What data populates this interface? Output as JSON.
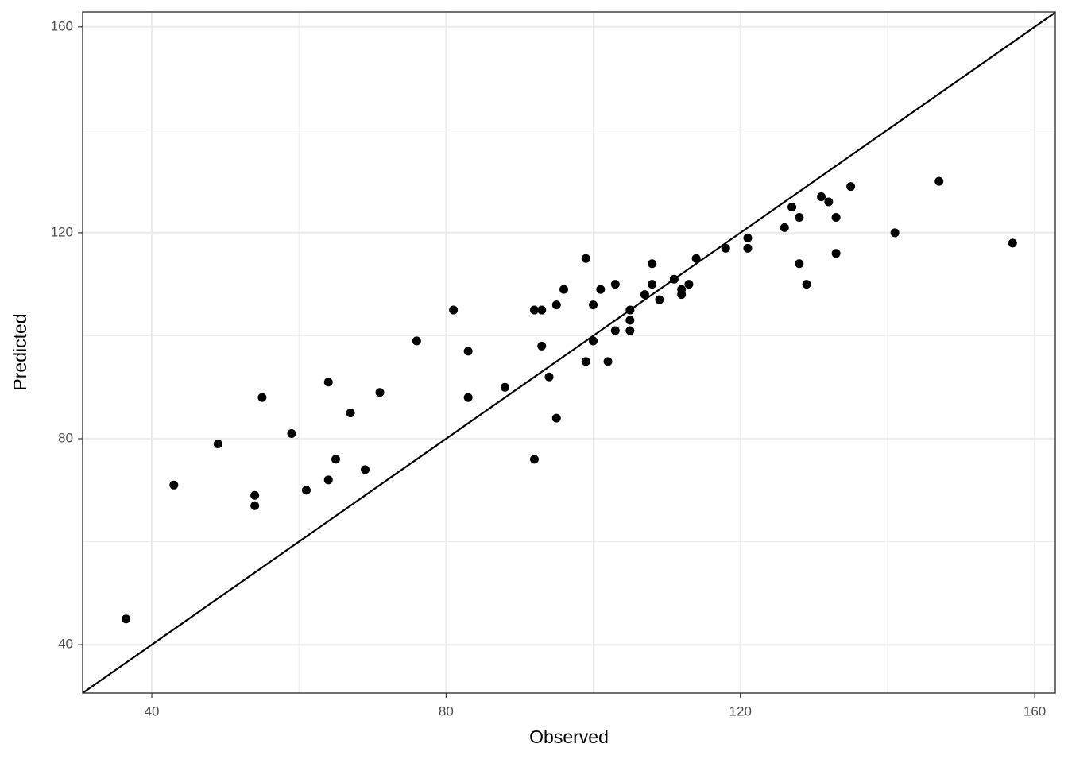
{
  "chart_data": {
    "type": "scatter",
    "x_label": "Observed",
    "y_label": "Predicted",
    "xlim": [
      30.6,
      162.8
    ],
    "ylim": [
      30.6,
      162.9
    ],
    "xticks": [
      40,
      80,
      120,
      160
    ],
    "yticks": [
      40,
      80,
      120,
      160
    ],
    "x_minor_ticks": [
      60,
      100,
      140
    ],
    "y_minor_ticks": [
      60,
      100,
      140
    ],
    "grid": true,
    "color": "#000000",
    "reference_line": {
      "slope": 1,
      "intercept": 0
    },
    "x": [
      36.5,
      43,
      49,
      54,
      54,
      55,
      59,
      61,
      64,
      64,
      65,
      67,
      69,
      71,
      76,
      81,
      83,
      83,
      88,
      92,
      92,
      93,
      93,
      94,
      95,
      95,
      96,
      99,
      99,
      100,
      100,
      101,
      102,
      103,
      103,
      105,
      105,
      105,
      107,
      108,
      108,
      109,
      111,
      112,
      112,
      113,
      114,
      118,
      121,
      121,
      126,
      127,
      128,
      128,
      129,
      131,
      132,
      133,
      133,
      135,
      141,
      147,
      157
    ],
    "values": [
      45,
      71,
      79,
      69,
      67,
      88,
      81,
      70,
      91,
      72,
      76,
      85,
      74,
      89,
      99,
      105,
      97,
      88,
      90,
      105,
      76,
      105,
      98,
      92,
      106,
      84,
      109,
      115,
      95,
      106,
      99,
      109,
      95,
      110,
      101,
      105,
      103,
      101,
      108,
      114,
      110,
      107,
      111,
      109,
      108,
      110,
      115,
      117,
      119,
      117,
      121,
      125,
      123,
      114,
      110,
      127,
      126,
      123,
      116,
      129,
      120,
      130,
      118
    ]
  }
}
